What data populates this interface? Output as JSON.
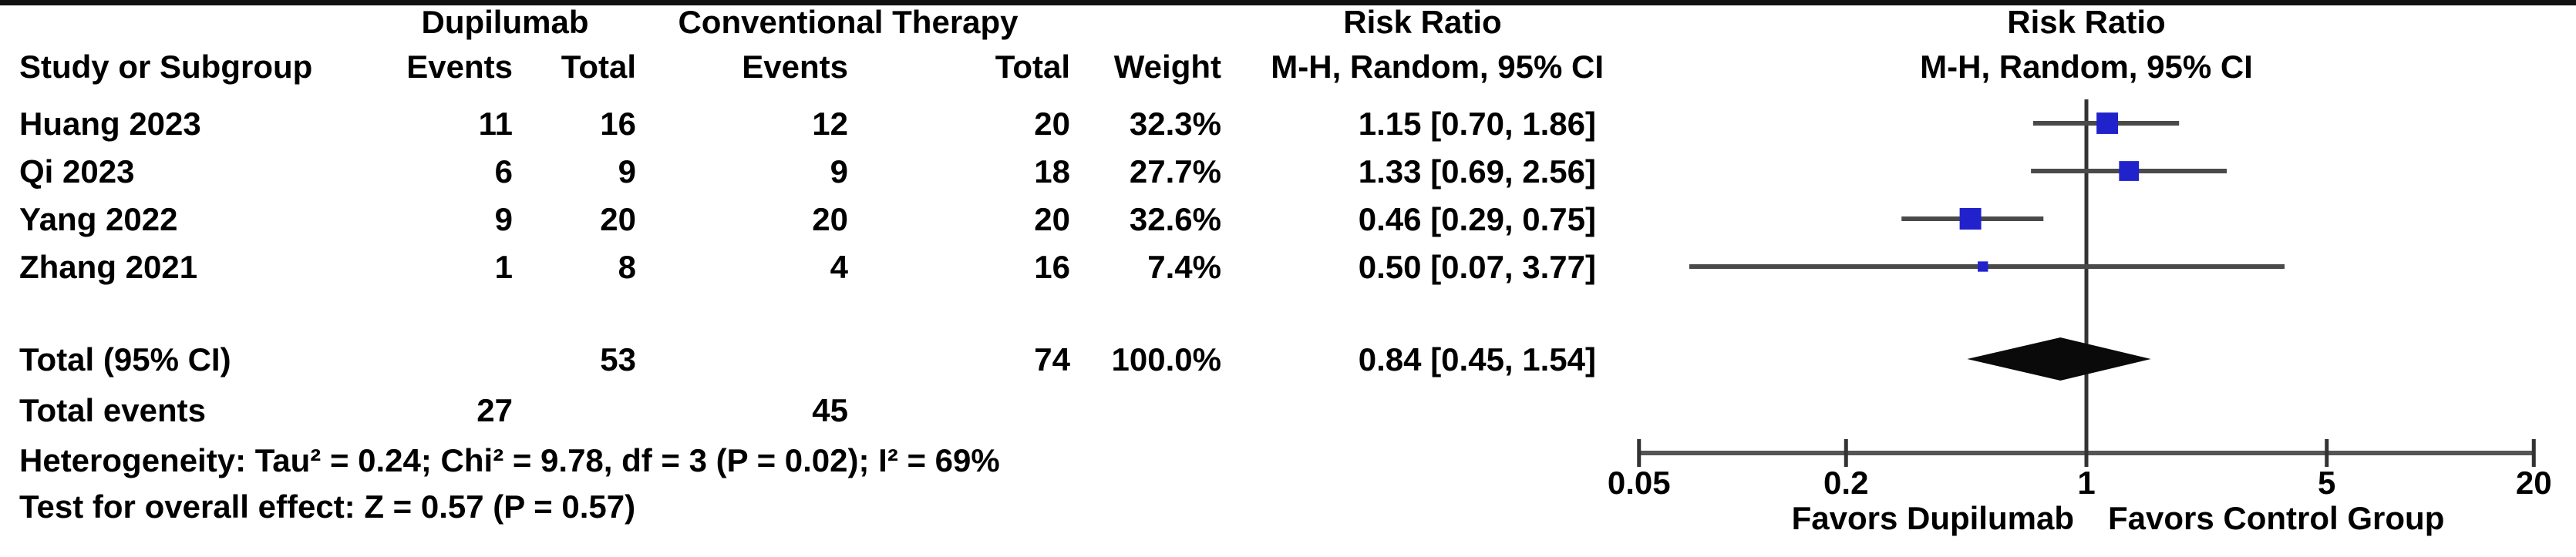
{
  "figure": {
    "header": {
      "study_col": "Study or Subgroup",
      "group1": "Dupilumab",
      "group2": "Conventional Therapy",
      "events": "Events",
      "total": "Total",
      "weight": "Weight",
      "effect_line1": "Risk Ratio",
      "effect_line2": "M-H, Random, 95% CI"
    },
    "total_row": {
      "label": "Total (95% CI)",
      "total1": "53",
      "total2": "74",
      "weight": "100.0%",
      "estimate_label": "0.84 [0.45, 1.54]"
    },
    "total_events_row": {
      "label": "Total events",
      "events1": "27",
      "events2": "45"
    },
    "heterogeneity": "Heterogeneity: Tau² = 0.24; Chi² = 9.78, df = 3 (P = 0.02); I² = 69%",
    "overall_effect": "Test for overall effect: Z = 0.57 (P = 0.57)"
  },
  "chart_data": {
    "type": "forest",
    "effect_measure": "Risk Ratio",
    "method": "M-H, Random, 95% CI",
    "x_scale": "log",
    "x_ticks": [
      "0.05",
      "0.2",
      "1",
      "5",
      "20"
    ],
    "x_range": [
      0.05,
      20
    ],
    "null_value": 1,
    "favors_left": "Favors Dupilumab",
    "favors_right": "Favors Control Group",
    "studies": [
      {
        "name": "Huang 2023",
        "events1": "11",
        "total1": "16",
        "events2": "12",
        "total2": "20",
        "weight": "32.3%",
        "weight_pct": 32.3,
        "rr": 1.15,
        "ci_low": 0.7,
        "ci_high": 1.86,
        "estimate_label": "1.15 [0.70, 1.86]"
      },
      {
        "name": "Qi 2023",
        "events1": "6",
        "total1": "9",
        "events2": "9",
        "total2": "18",
        "weight": "27.7%",
        "weight_pct": 27.7,
        "rr": 1.33,
        "ci_low": 0.69,
        "ci_high": 2.56,
        "estimate_label": "1.33 [0.69, 2.56]"
      },
      {
        "name": "Yang 2022",
        "events1": "9",
        "total1": "20",
        "events2": "20",
        "total2": "20",
        "weight": "32.6%",
        "weight_pct": 32.6,
        "rr": 0.46,
        "ci_low": 0.29,
        "ci_high": 0.75,
        "estimate_label": "0.46 [0.29, 0.75]"
      },
      {
        "name": "Zhang 2021",
        "events1": "1",
        "total1": "8",
        "events2": "4",
        "total2": "16",
        "weight": "7.4%",
        "weight_pct": 7.4,
        "rr": 0.5,
        "ci_low": 0.07,
        "ci_high": 3.77,
        "estimate_label": "0.50 [0.07, 3.77]"
      }
    ],
    "overall": {
      "rr": 0.84,
      "ci_low": 0.45,
      "ci_high": 1.54
    }
  },
  "colors": {
    "square": "#2222cc",
    "diamond": "#0a0a0a",
    "ci_line": "#4a4a4a",
    "axis_line": "#555555",
    "null_line": "#333333",
    "rule": "#111111",
    "text": "#000000",
    "background": "#ffffff"
  }
}
